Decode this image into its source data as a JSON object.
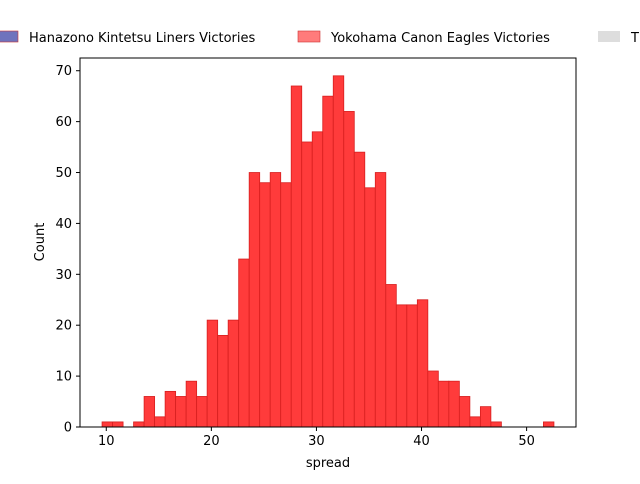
{
  "chart_data": {
    "type": "bar",
    "xlabel": "spread",
    "ylabel": "Count",
    "xlim": [
      7.5,
      54.7
    ],
    "ylim": [
      0,
      72.5
    ],
    "x_ticks": [
      10,
      20,
      30,
      40,
      50
    ],
    "y_ticks": [
      0,
      10,
      20,
      30,
      40,
      50,
      60,
      70
    ],
    "bin_width": 1,
    "grid": false,
    "legend": {
      "placement": "top",
      "entries": [
        {
          "label": "Hanazono Kintetsu Liners Victories",
          "color": "#6f73bd"
        },
        {
          "label": "Yokohama Canon Eagles Victories",
          "color": "#ff7b7b"
        },
        {
          "label": "T",
          "color": "#dddddd"
        }
      ]
    },
    "series": [
      {
        "name": "Yokohama Canon Eagles Victories",
        "color": "#ff3b3b",
        "edge_color": "#d71f1f",
        "bin_starts": [
          9.6,
          10.6,
          11.6,
          12.6,
          13.6,
          14.6,
          15.6,
          16.6,
          17.6,
          18.6,
          19.6,
          20.6,
          21.6,
          22.6,
          23.6,
          24.6,
          25.6,
          26.6,
          27.6,
          28.6,
          29.6,
          30.6,
          31.6,
          32.6,
          33.6,
          34.6,
          35.6,
          36.6,
          37.6,
          38.6,
          39.6,
          40.6,
          41.6,
          42.6,
          43.6,
          44.6,
          45.6,
          46.6,
          47.6,
          48.6,
          49.6,
          50.6,
          51.6
        ],
        "values": [
          1,
          1,
          0,
          1,
          6,
          2,
          7,
          6,
          9,
          6,
          21,
          18,
          21,
          33,
          50,
          48,
          50,
          48,
          67,
          56,
          58,
          65,
          69,
          62,
          54,
          47,
          50,
          28,
          24,
          24,
          25,
          11,
          9,
          9,
          6,
          2,
          4,
          1,
          0,
          0,
          0,
          0,
          1
        ]
      }
    ]
  }
}
